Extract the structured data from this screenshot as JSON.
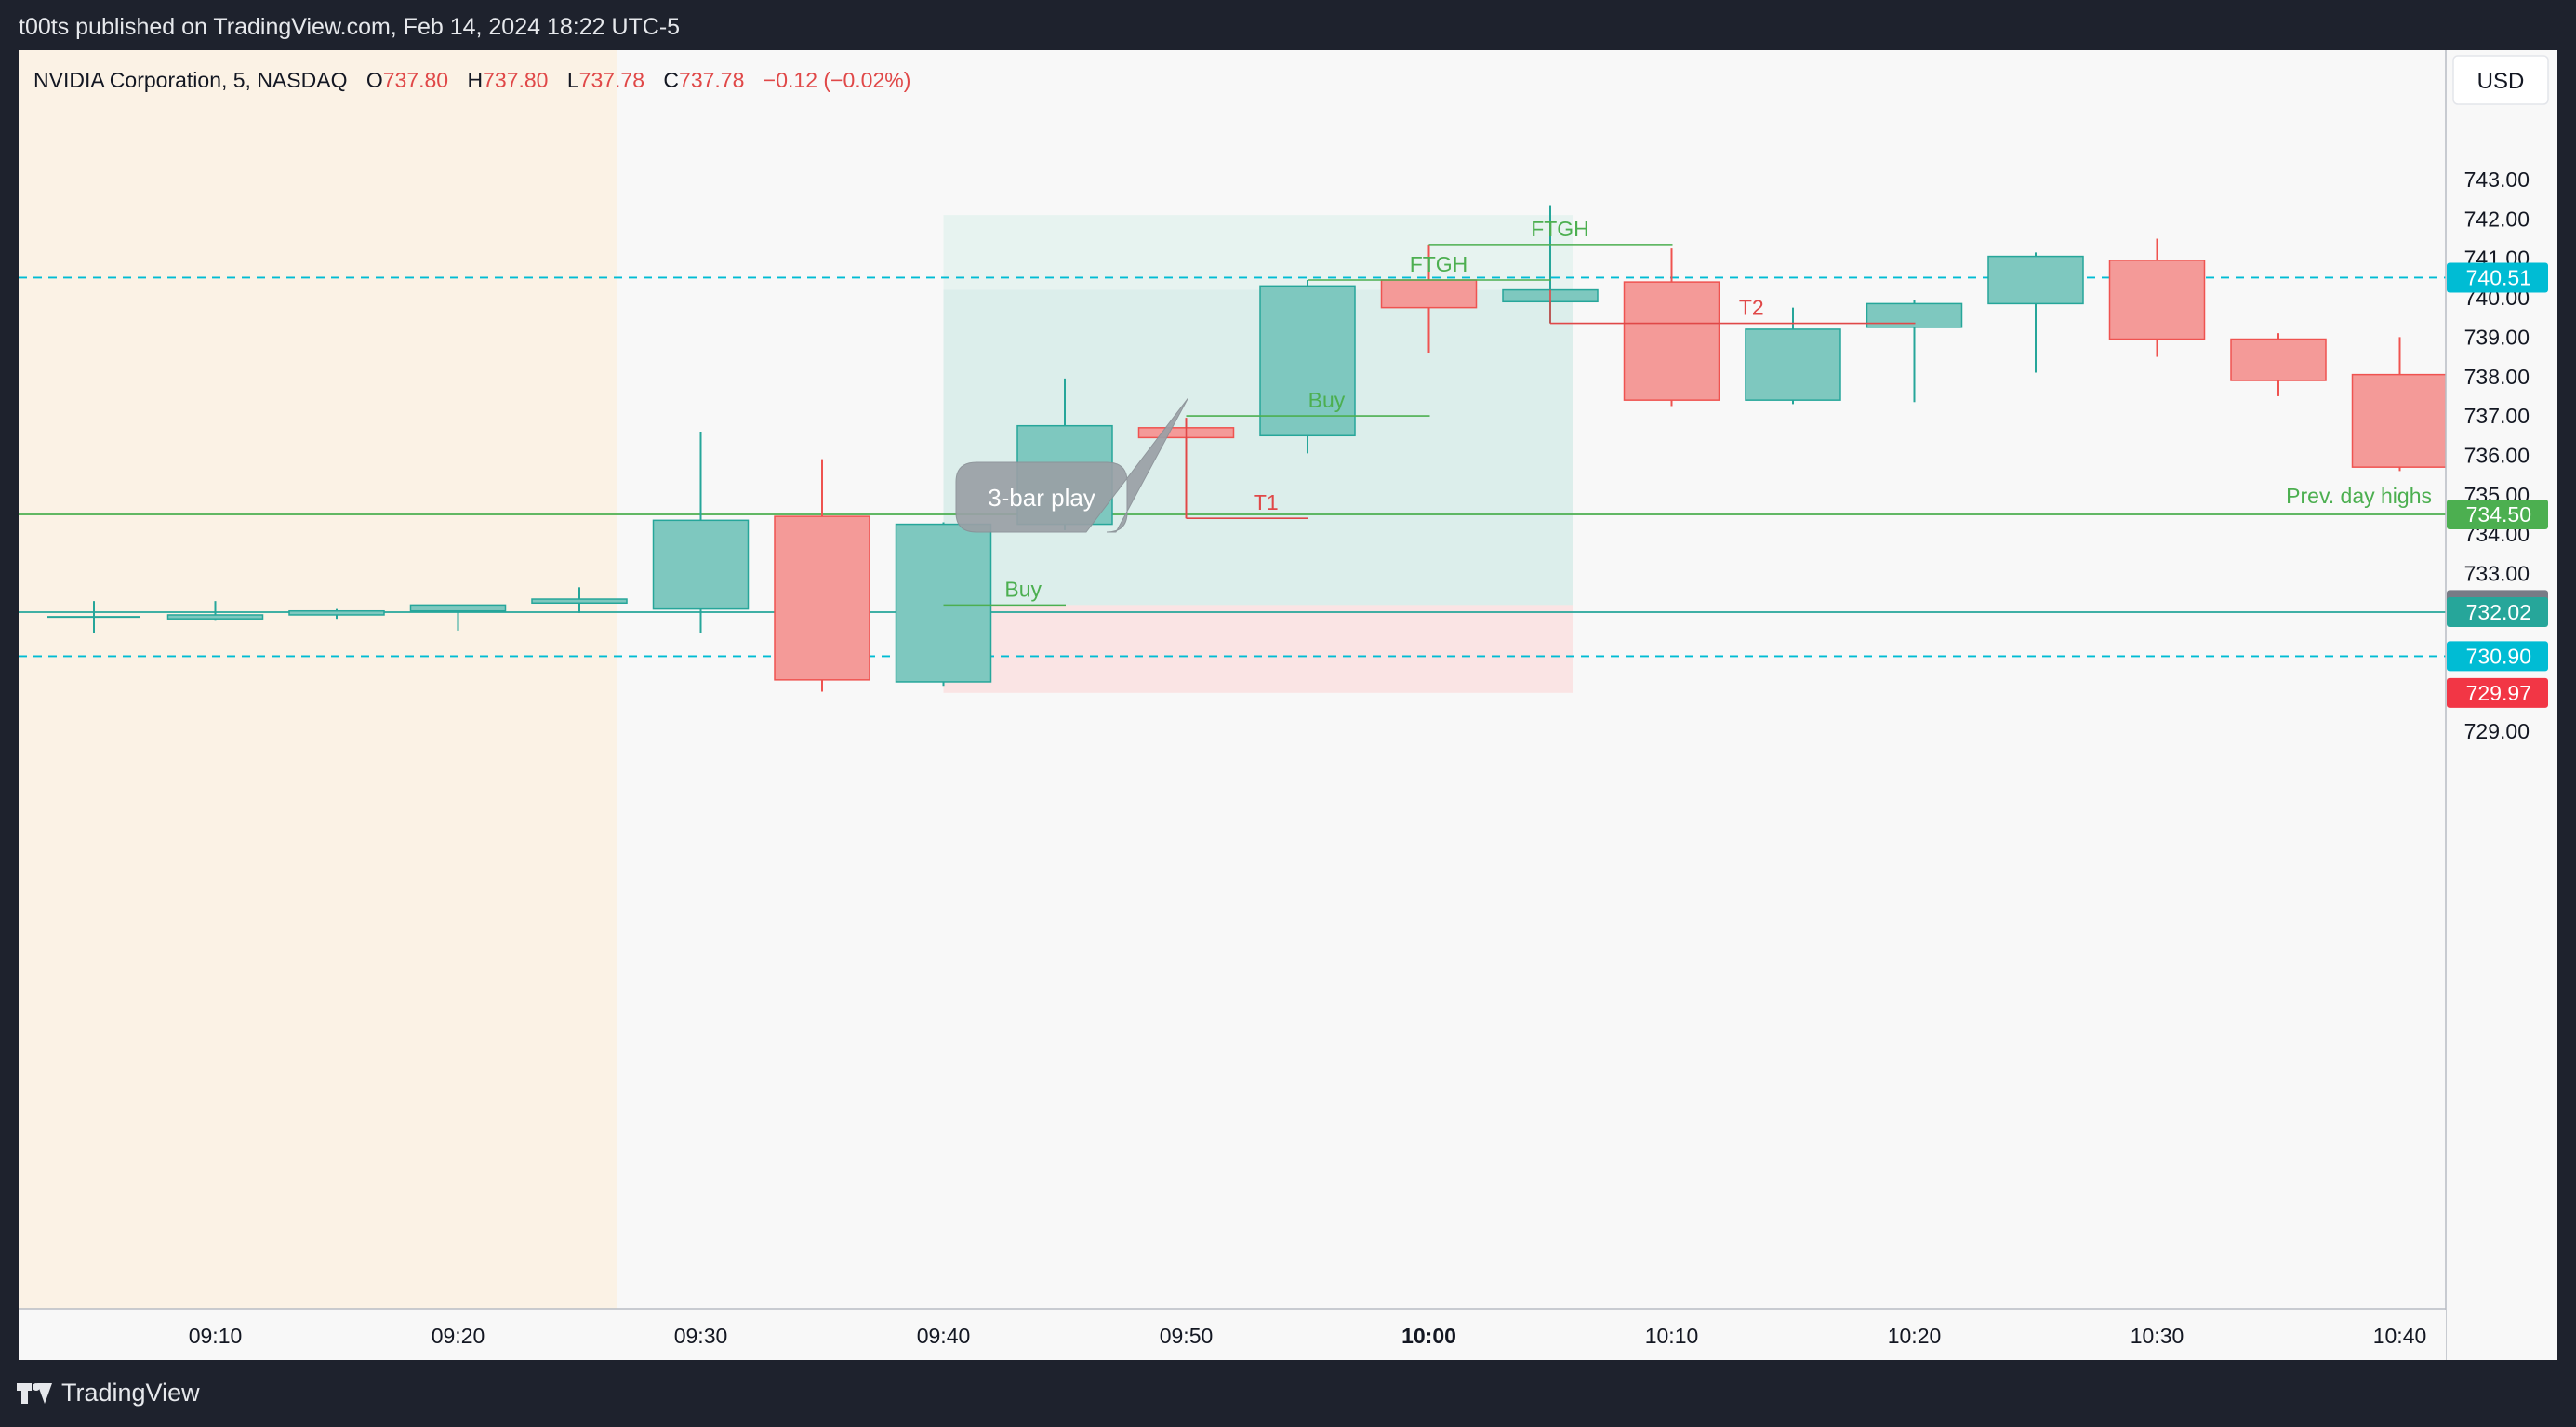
{
  "header": {
    "publish_text": "t00ts published on TradingView.com, Feb 14, 2024 18:22 UTC-5"
  },
  "legend": {
    "symbol": "NVIDIA Corporation, 5, NASDAQ",
    "o_label": "O",
    "o_value": "737.80",
    "h_label": "H",
    "h_value": "737.80",
    "l_label": "L",
    "l_value": "737.78",
    "c_label": "C",
    "c_value": "737.78",
    "change": "−0.12 (−0.02%)"
  },
  "currency_button": "USD",
  "footer": {
    "brand": "TradingView"
  },
  "colors": {
    "up": "#7ec8bf",
    "up_edge": "#26a69a",
    "down": "#f49a98",
    "down_edge": "#ef5350",
    "annot_green": "#4caf50",
    "annot_red": "#e04848",
    "cyan": "#00bcd4",
    "premarket_bg": "#fbf2e5"
  },
  "chart_data": {
    "type": "candlestick",
    "symbol": "NVIDIA Corporation, 5, NASDAQ",
    "interval": "5",
    "ylim": [
      728.7,
      744.1
    ],
    "y_ticks": [
      "729.00",
      "733.00",
      "734.00",
      "735.00",
      "736.00",
      "737.00",
      "738.00",
      "739.00",
      "740.00",
      "741.00",
      "742.00",
      "743.00"
    ],
    "x_ticks": [
      {
        "t": "09:10",
        "i": 1,
        "bold": false
      },
      {
        "t": "09:20",
        "i": 3,
        "bold": false
      },
      {
        "t": "09:30",
        "i": 5,
        "bold": false
      },
      {
        "t": "09:40",
        "i": 7,
        "bold": false
      },
      {
        "t": "09:50",
        "i": 9,
        "bold": false
      },
      {
        "t": "10:00",
        "i": 11,
        "bold": true
      },
      {
        "t": "10:10",
        "i": 13,
        "bold": false
      },
      {
        "t": "10:20",
        "i": 15,
        "bold": false
      },
      {
        "t": "10:30",
        "i": 17,
        "bold": false
      },
      {
        "t": "10:40",
        "i": 19,
        "bold": false
      }
    ],
    "candles": [
      {
        "time": "09:05",
        "o": 731.9,
        "h": 732.3,
        "l": 731.5,
        "c": 731.9
      },
      {
        "time": "09:10",
        "o": 731.85,
        "h": 732.3,
        "l": 731.8,
        "c": 731.95
      },
      {
        "time": "09:15",
        "o": 731.95,
        "h": 732.1,
        "l": 731.85,
        "c": 732.05
      },
      {
        "time": "09:20",
        "o": 732.05,
        "h": 732.2,
        "l": 731.55,
        "c": 732.2
      },
      {
        "time": "09:25",
        "o": 732.25,
        "h": 732.65,
        "l": 732.0,
        "c": 732.35
      },
      {
        "time": "09:30",
        "o": 732.1,
        "h": 736.6,
        "l": 731.5,
        "c": 734.35
      },
      {
        "time": "09:35",
        "o": 734.45,
        "h": 735.9,
        "l": 730.0,
        "c": 730.3
      },
      {
        "time": "09:40",
        "o": 730.25,
        "h": 734.3,
        "l": 730.15,
        "c": 734.25
      },
      {
        "time": "09:45",
        "o": 734.25,
        "h": 737.95,
        "l": 734.1,
        "c": 736.75
      },
      {
        "time": "09:50",
        "o": 736.7,
        "h": 736.95,
        "l": 734.4,
        "c": 736.45
      },
      {
        "time": "09:55",
        "o": 736.5,
        "h": 740.45,
        "l": 736.05,
        "c": 740.3
      },
      {
        "time": "10:00",
        "o": 740.45,
        "h": 741.35,
        "l": 738.6,
        "c": 739.75
      },
      {
        "time": "10:05",
        "o": 739.9,
        "h": 742.35,
        "l": 739.35,
        "c": 740.2
      },
      {
        "time": "10:10",
        "o": 740.4,
        "h": 741.25,
        "l": 737.25,
        "c": 737.4
      },
      {
        "time": "10:15",
        "o": 737.4,
        "h": 739.75,
        "l": 737.3,
        "c": 739.2
      },
      {
        "time": "10:20",
        "o": 739.25,
        "h": 739.95,
        "l": 737.35,
        "c": 739.85
      },
      {
        "time": "10:25",
        "o": 739.85,
        "h": 741.15,
        "l": 738.1,
        "c": 741.05
      },
      {
        "time": "10:30",
        "o": 740.95,
        "h": 741.5,
        "l": 738.5,
        "c": 738.95
      },
      {
        "time": "10:35",
        "o": 738.95,
        "h": 739.1,
        "l": 737.5,
        "c": 737.9
      },
      {
        "time": "10:40",
        "o": 738.05,
        "h": 739.0,
        "l": 735.6,
        "c": 735.7
      }
    ],
    "horizontal_lines": [
      {
        "price": 740.51,
        "style": "dashed",
        "color": "#00bcd4",
        "badge": "740.51",
        "badge_color": "#00bcd4"
      },
      {
        "price": 734.5,
        "style": "solid",
        "color": "#4caf50",
        "badge": "734.50",
        "badge_color": "#4caf50",
        "label": "Prev. day highs"
      },
      {
        "price": 732.2,
        "style": "none",
        "badge": "732.20",
        "badge_color": "#787b86"
      },
      {
        "price": 732.02,
        "style": "solid",
        "color": "#26a69a",
        "badge": "732.02",
        "badge_color": "#26a69a"
      },
      {
        "price": 730.9,
        "style": "dashed",
        "color": "#00bcd4",
        "badge": "730.90",
        "badge_color": "#00bcd4"
      },
      {
        "price": 729.97,
        "style": "none",
        "badge": "729.97",
        "badge_color": "#f23645"
      }
    ],
    "position_box": {
      "from": 7,
      "to": 12,
      "entry": 732.2,
      "target": 742.1,
      "stop": 729.97,
      "mid": 740.2
    },
    "premarket": {
      "until": 4.5
    },
    "annotations": [
      {
        "text": "3-bar play",
        "type": "callout",
        "anchor_i": 9,
        "anchor_p": 737.45
      },
      {
        "text": "Buy",
        "type": "green",
        "from": 7,
        "to": 8,
        "price": 732.2
      },
      {
        "text": "Buy",
        "type": "green",
        "from": 9,
        "to": 11,
        "price": 737.0
      },
      {
        "text": "T1",
        "type": "red",
        "from": 9,
        "to": 10,
        "price": 734.4,
        "vconnect": 736.95
      },
      {
        "text": "FTGH",
        "type": "green",
        "from": 10,
        "to": 12,
        "price": 740.45
      },
      {
        "text": "FTGH",
        "type": "green",
        "from": 11,
        "to": 13,
        "price": 741.35
      },
      {
        "text": "T2",
        "type": "red",
        "from": 12,
        "to": 15,
        "price": 739.35,
        "vconnect": 740.2
      }
    ]
  }
}
